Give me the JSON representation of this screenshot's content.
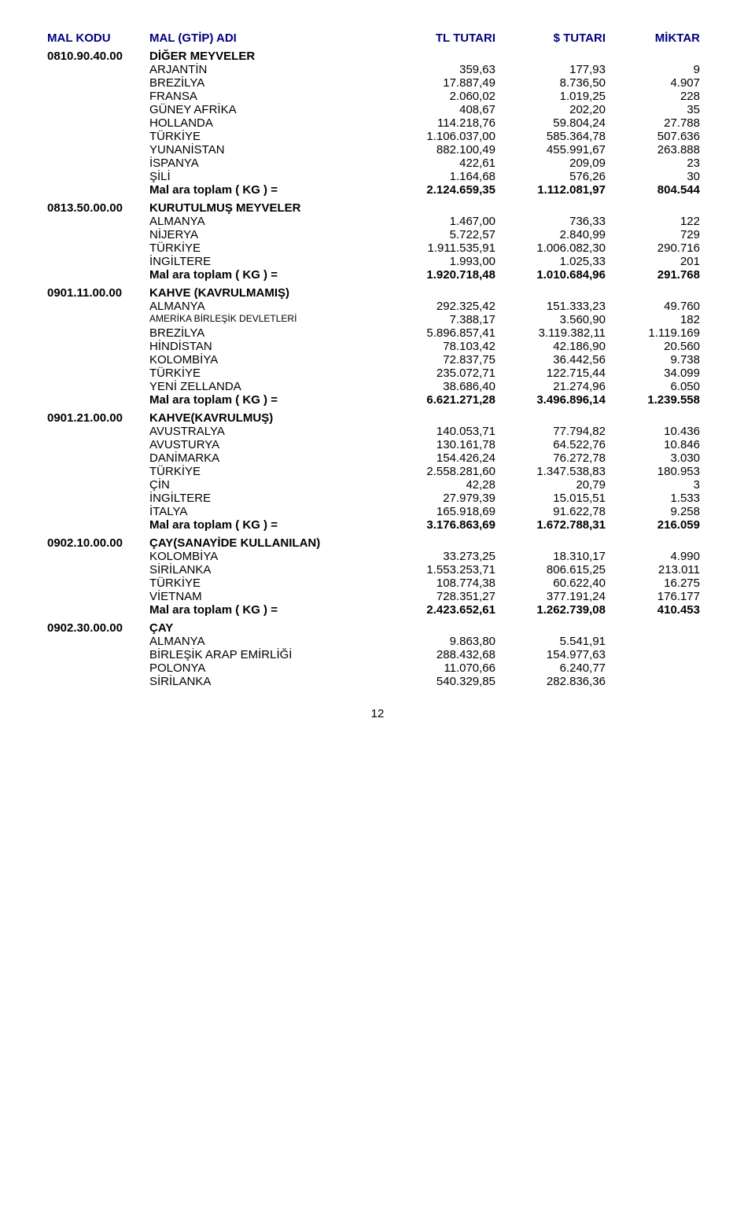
{
  "header": {
    "code": "MAL KODU",
    "name": "MAL (GTİP) ADI",
    "tl": "TL TUTARI",
    "usd": "$ TUTARI",
    "qty": "MİKTAR"
  },
  "sections": [
    {
      "code": "0810.90.40.00",
      "title": "DİĞER MEYVELER",
      "rows": [
        {
          "name": "ARJANTİN",
          "tl": "359,63",
          "usd": "177,93",
          "qty": "9"
        },
        {
          "name": "BREZİLYA",
          "tl": "17.887,49",
          "usd": "8.736,50",
          "qty": "4.907"
        },
        {
          "name": "FRANSA",
          "tl": "2.060,02",
          "usd": "1.019,25",
          "qty": "228"
        },
        {
          "name": "GÜNEY AFRİKA",
          "tl": "408,67",
          "usd": "202,20",
          "qty": "35"
        },
        {
          "name": "HOLLANDA",
          "tl": "114.218,76",
          "usd": "59.804,24",
          "qty": "27.788"
        },
        {
          "name": "TÜRKİYE",
          "tl": "1.106.037,00",
          "usd": "585.364,78",
          "qty": "507.636"
        },
        {
          "name": "YUNANİSTAN",
          "tl": "882.100,49",
          "usd": "455.991,67",
          "qty": "263.888"
        },
        {
          "name": "İSPANYA",
          "tl": "422,61",
          "usd": "209,09",
          "qty": "23"
        },
        {
          "name": "ŞİLİ",
          "tl": "1.164,68",
          "usd": "576,26",
          "qty": "30"
        }
      ],
      "total": {
        "label": "Mal ara toplam  ( KG ) =",
        "tl": "2.124.659,35",
        "usd": "1.112.081,97",
        "qty": "804.544"
      }
    },
    {
      "code": "0813.50.00.00",
      "title": "KURUTULMUŞ MEYVELER",
      "rows": [
        {
          "name": "ALMANYA",
          "tl": "1.467,00",
          "usd": "736,33",
          "qty": "122"
        },
        {
          "name": "NİJERYA",
          "tl": "5.722,57",
          "usd": "2.840,99",
          "qty": "729"
        },
        {
          "name": "TÜRKİYE",
          "tl": "1.911.535,91",
          "usd": "1.006.082,30",
          "qty": "290.716"
        },
        {
          "name": "İNGİLTERE",
          "tl": "1.993,00",
          "usd": "1.025,33",
          "qty": "201"
        }
      ],
      "total": {
        "label": "Mal ara toplam  ( KG ) =",
        "tl": "1.920.718,48",
        "usd": "1.010.684,96",
        "qty": "291.768"
      }
    },
    {
      "code": "0901.11.00.00",
      "title": "KAHVE (KAVRULMAMIŞ)",
      "rows": [
        {
          "name": "ALMANYA",
          "tl": "292.325,42",
          "usd": "151.333,23",
          "qty": "49.760"
        },
        {
          "name": "AMERİKA BİRLEŞİK DEVLETLERİ",
          "small": true,
          "tl": "7.388,17",
          "usd": "3.560,90",
          "qty": "182"
        },
        {
          "name": "BREZİLYA",
          "tl": "5.896.857,41",
          "usd": "3.119.382,11",
          "qty": "1.119.169"
        },
        {
          "name": "HİNDİSTAN",
          "tl": "78.103,42",
          "usd": "42.186,90",
          "qty": "20.560"
        },
        {
          "name": "KOLOMBİYA",
          "tl": "72.837,75",
          "usd": "36.442,56",
          "qty": "9.738"
        },
        {
          "name": "TÜRKİYE",
          "tl": "235.072,71",
          "usd": "122.715,44",
          "qty": "34.099"
        },
        {
          "name": "YENİ ZELLANDA",
          "tl": "38.686,40",
          "usd": "21.274,96",
          "qty": "6.050"
        }
      ],
      "total": {
        "label": "Mal ara toplam  ( KG ) =",
        "tl": "6.621.271,28",
        "usd": "3.496.896,14",
        "qty": "1.239.558"
      }
    },
    {
      "code": "0901.21.00.00",
      "title": "KAHVE(KAVRULMUŞ)",
      "rows": [
        {
          "name": "AVUSTRALYA",
          "tl": "140.053,71",
          "usd": "77.794,82",
          "qty": "10.436"
        },
        {
          "name": "AVUSTURYA",
          "tl": "130.161,78",
          "usd": "64.522,76",
          "qty": "10.846"
        },
        {
          "name": "DANİMARKA",
          "tl": "154.426,24",
          "usd": "76.272,78",
          "qty": "3.030"
        },
        {
          "name": "TÜRKİYE",
          "tl": "2.558.281,60",
          "usd": "1.347.538,83",
          "qty": "180.953"
        },
        {
          "name": "ÇİN",
          "tl": "42,28",
          "usd": "20,79",
          "qty": "3"
        },
        {
          "name": "İNGİLTERE",
          "tl": "27.979,39",
          "usd": "15.015,51",
          "qty": "1.533"
        },
        {
          "name": "İTALYA",
          "tl": "165.918,69",
          "usd": "91.622,78",
          "qty": "9.258"
        }
      ],
      "total": {
        "label": "Mal ara toplam  ( KG ) =",
        "tl": "3.176.863,69",
        "usd": "1.672.788,31",
        "qty": "216.059"
      }
    },
    {
      "code": "0902.10.00.00",
      "title": "ÇAY(SANAYİDE KULLANILAN)",
      "rows": [
        {
          "name": "KOLOMBİYA",
          "tl": "33.273,25",
          "usd": "18.310,17",
          "qty": "4.990"
        },
        {
          "name": "SİRİLANKA",
          "tl": "1.553.253,71",
          "usd": "806.615,25",
          "qty": "213.011"
        },
        {
          "name": "TÜRKİYE",
          "tl": "108.774,38",
          "usd": "60.622,40",
          "qty": "16.275"
        },
        {
          "name": "VİETNAM",
          "tl": "728.351,27",
          "usd": "377.191,24",
          "qty": "176.177"
        }
      ],
      "total": {
        "label": "Mal ara toplam  ( KG ) =",
        "tl": "2.423.652,61",
        "usd": "1.262.739,08",
        "qty": "410.453"
      }
    },
    {
      "code": "0902.30.00.00",
      "title": "ÇAY",
      "rows": [
        {
          "name": "ALMANYA",
          "tl": "9.863,80",
          "usd": "5.541,91",
          "qty": ""
        },
        {
          "name": "BİRLEŞİK ARAP EMİRLİĞİ",
          "tl": "288.432,68",
          "usd": "154.977,63",
          "qty": ""
        },
        {
          "name": "POLONYA",
          "tl": "11.070,66",
          "usd": "6.240,77",
          "qty": ""
        },
        {
          "name": "SİRİLANKA",
          "tl": "540.329,85",
          "usd": "282.836,36",
          "qty": ""
        }
      ]
    }
  ],
  "page": "12"
}
